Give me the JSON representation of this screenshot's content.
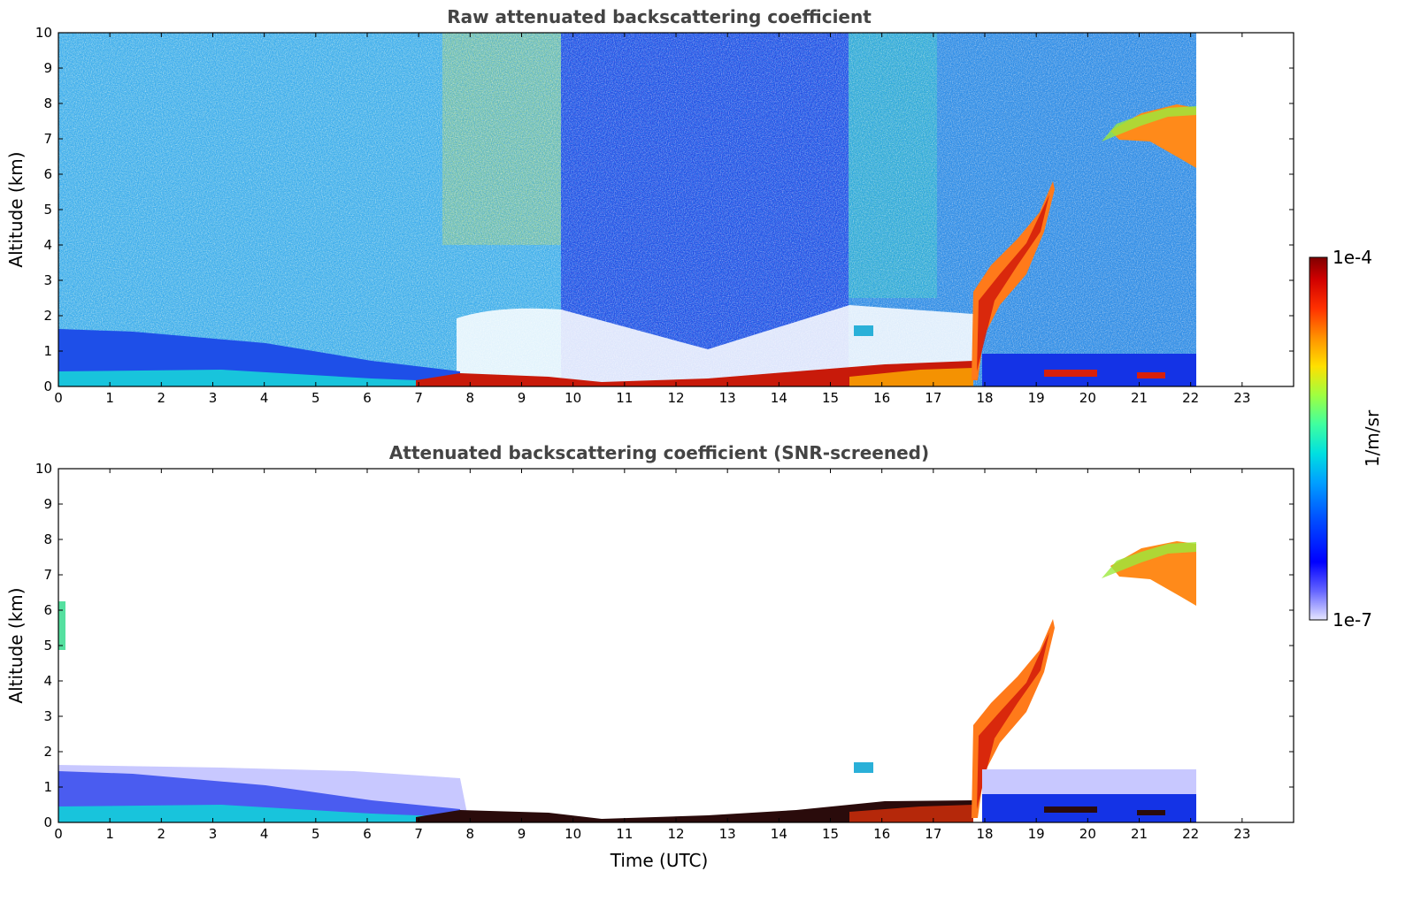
{
  "chart_data": [
    {
      "type": "heatmap",
      "title": "Raw attenuated backscattering coefficient",
      "xlabel": "",
      "ylabel": "Altitude (km)",
      "xlim": [
        0,
        24
      ],
      "ylim": [
        0,
        10
      ],
      "x_ticks": [
        0,
        1,
        2,
        3,
        4,
        5,
        6,
        7,
        8,
        9,
        10,
        11,
        12,
        13,
        14,
        15,
        16,
        17,
        18,
        19,
        20,
        21,
        22,
        23
      ],
      "y_ticks": [
        0,
        1,
        2,
        3,
        4,
        5,
        6,
        7,
        8,
        9,
        10
      ],
      "data_end_time": 22.7,
      "features": [
        {
          "name": "boundary layer aerosol",
          "t": [
            0,
            8
          ],
          "alt_top": [
            1.6,
            0.4
          ],
          "level": "moderate"
        },
        {
          "name": "surface layer",
          "t": [
            8,
            18.3
          ],
          "alt_top": [
            0.35,
            0.3
          ],
          "level": "high"
        },
        {
          "name": "rising cloud plume",
          "t": [
            18.2,
            19.8
          ],
          "alt_top": [
            2.5,
            5.8
          ],
          "level": "high"
        },
        {
          "name": "high cloud",
          "t": [
            21.2,
            22.7
          ],
          "alt": [
            6.2,
            7.9
          ],
          "level": "high"
        },
        {
          "name": "low cloud spots",
          "t": [
            19.8,
            22.2
          ],
          "alt": [
            0.2,
            0.5
          ],
          "level": "high"
        }
      ]
    },
    {
      "type": "heatmap",
      "title": "Attenuated backscattering coefficient (SNR-screened)",
      "xlabel": "Time (UTC)",
      "ylabel": "Altitude (km)",
      "xlim": [
        0,
        24
      ],
      "ylim": [
        0,
        10
      ],
      "x_ticks": [
        0,
        1,
        2,
        3,
        4,
        5,
        6,
        7,
        8,
        9,
        10,
        11,
        12,
        13,
        14,
        15,
        16,
        17,
        18,
        19,
        20,
        21,
        22,
        23
      ],
      "y_ticks": [
        0,
        1,
        2,
        3,
        4,
        5,
        6,
        7,
        8,
        9,
        10
      ],
      "data_end_time": 22.7
    }
  ],
  "colorbar": {
    "label": "1/m/sr",
    "max_label": "1e-4",
    "min_label": "1e-7",
    "scale": "log",
    "colormap": [
      "#e6e6ff",
      "#6464ff",
      "#0000ff",
      "#0050ff",
      "#00a0ff",
      "#00e0e0",
      "#40ff9f",
      "#9fff40",
      "#ffe000",
      "#ff9000",
      "#ff3000",
      "#d00000",
      "#800000"
    ]
  }
}
